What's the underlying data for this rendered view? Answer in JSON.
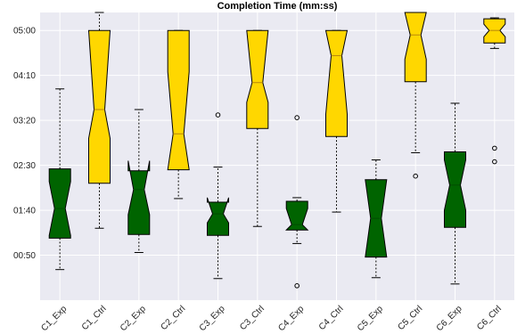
{
  "chart_data": {
    "type": "boxplot",
    "title": "Completion Time (mm:ss)",
    "xlabel": "",
    "ylabel": "",
    "notched": true,
    "grid": true,
    "legend": "none",
    "y_unit": "seconds",
    "ylim": [
      0,
      320
    ],
    "y_ticks": [
      {
        "value": 50,
        "label": "00:50"
      },
      {
        "value": 100,
        "label": "01:40"
      },
      {
        "value": 150,
        "label": "02:30"
      },
      {
        "value": 200,
        "label": "03:20"
      },
      {
        "value": 250,
        "label": "04:10"
      },
      {
        "value": 300,
        "label": "05:00"
      }
    ],
    "categories": [
      "C1_Exp",
      "C1_Ctrl",
      "C2_Exp",
      "C2_Ctrl",
      "C3_Exp",
      "C3_Ctrl",
      "C4_Exp",
      "C4_Ctrl",
      "C5_Exp",
      "C5_Ctrl",
      "C6_Exp",
      "C6_Ctrl"
    ],
    "boxes": [
      {
        "label": "C1_Exp",
        "group": "Exp",
        "whislo": 34,
        "q1": 69,
        "med": 102,
        "q3": 146,
        "whishi": 235,
        "cilo": 72,
        "cihi": 132,
        "fliers": []
      },
      {
        "label": "C1_Ctrl",
        "group": "Ctrl",
        "whislo": 80,
        "q1": 130,
        "med": 212,
        "q3": 300,
        "whishi": 320,
        "cilo": 180,
        "cihi": 300,
        "fliers": []
      },
      {
        "label": "C2_Exp",
        "group": "Exp",
        "whislo": 53,
        "q1": 73,
        "med": 123,
        "q3": 144,
        "whishi": 212,
        "cilo": 95,
        "cihi": 155,
        "fliers": []
      },
      {
        "label": "C2_Ctrl",
        "group": "Ctrl",
        "whislo": 113,
        "q1": 145,
        "med": 185,
        "q3": 300,
        "whishi": 300,
        "cilo": 145,
        "cihi": 254,
        "fliers": []
      },
      {
        "label": "C3_Exp",
        "group": "Exp",
        "whislo": 24,
        "q1": 72,
        "med": 96,
        "q3": 109,
        "whishi": 148,
        "cilo": 86,
        "cihi": 114,
        "fliers": [
          206
        ]
      },
      {
        "label": "C3_Ctrl",
        "group": "Ctrl",
        "whislo": 82,
        "q1": 191,
        "med": 242,
        "q3": 300,
        "whishi": 300,
        "cilo": 220,
        "cihi": 300,
        "fliers": []
      },
      {
        "label": "C4_Exp",
        "group": "Exp",
        "whislo": 63,
        "q1": 78,
        "med": 84,
        "q3": 110,
        "whishi": 114,
        "cilo": 78,
        "cihi": 102,
        "fliers": [
          203,
          16
        ]
      },
      {
        "label": "C4_Ctrl",
        "group": "Ctrl",
        "whislo": 98,
        "q1": 182,
        "med": 272,
        "q3": 300,
        "whishi": 300,
        "cilo": 207,
        "cihi": 300,
        "fliers": []
      },
      {
        "label": "C5_Exp",
        "group": "Exp",
        "whislo": 25,
        "q1": 48,
        "med": 91,
        "q3": 134,
        "whishi": 156,
        "cilo": 48,
        "cihi": 134,
        "fliers": []
      },
      {
        "label": "C5_Ctrl",
        "group": "Ctrl",
        "whislo": 164,
        "q1": 243,
        "med": 295,
        "q3": 320,
        "whishi": 320,
        "cilo": 268,
        "cihi": 320,
        "fliers": [
          138
        ]
      },
      {
        "label": "C6_Exp",
        "group": "Exp",
        "whislo": 18,
        "q1": 81,
        "med": 128,
        "q3": 165,
        "whishi": 219,
        "cilo": 100,
        "cihi": 156,
        "fliers": []
      },
      {
        "label": "C6_Ctrl",
        "group": "Ctrl",
        "whislo": 280,
        "q1": 286,
        "med": 300,
        "q3": 313,
        "whishi": 314,
        "cilo": 293,
        "cihi": 307,
        "fliers": [
          169,
          154
        ]
      }
    ],
    "colors": {
      "Exp": "#006400",
      "Ctrl": "#ffd700",
      "background": "#eaeaf2",
      "grid": "#ffffff"
    }
  }
}
